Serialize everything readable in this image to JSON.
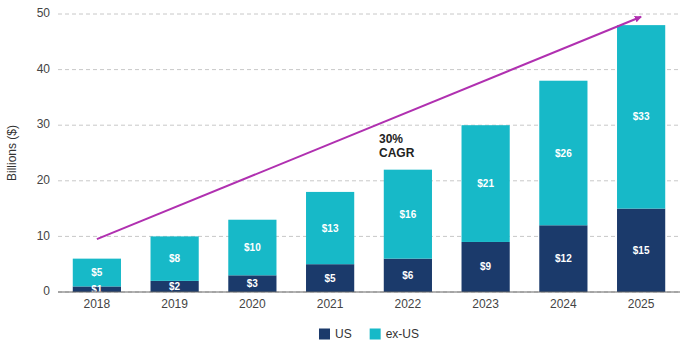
{
  "chart_data": {
    "type": "bar",
    "stacked": true,
    "categories": [
      "2018",
      "2019",
      "2020",
      "2021",
      "2022",
      "2023",
      "2024",
      "2025"
    ],
    "series": [
      {
        "name": "US",
        "color": "#1b3a6b",
        "values": [
          1,
          2,
          3,
          5,
          6,
          9,
          12,
          15
        ],
        "value_labels": [
          "$1",
          "$2",
          "$3",
          "$5",
          "$6",
          "$9",
          "$12",
          "$15"
        ]
      },
      {
        "name": "ex-US",
        "color": "#17b9c8",
        "values": [
          5,
          8,
          10,
          13,
          16,
          21,
          26,
          33
        ],
        "value_labels": [
          "$5",
          "$8",
          "$10",
          "$13",
          "$16",
          "$21",
          "$26",
          "$33"
        ]
      }
    ],
    "ylabel": "Billions ($)",
    "ylim": [
      0,
      50
    ],
    "yticks": [
      0,
      10,
      20,
      30,
      40,
      50
    ],
    "grid": true,
    "legend": "bottom",
    "data_labels": true,
    "annotations": [
      {
        "text": "30%\nCAGR",
        "color": "#b030b0",
        "arrow": {
          "x": [
            "2018",
            "2025"
          ],
          "y": [
            9.5,
            49.5
          ]
        }
      }
    ]
  }
}
